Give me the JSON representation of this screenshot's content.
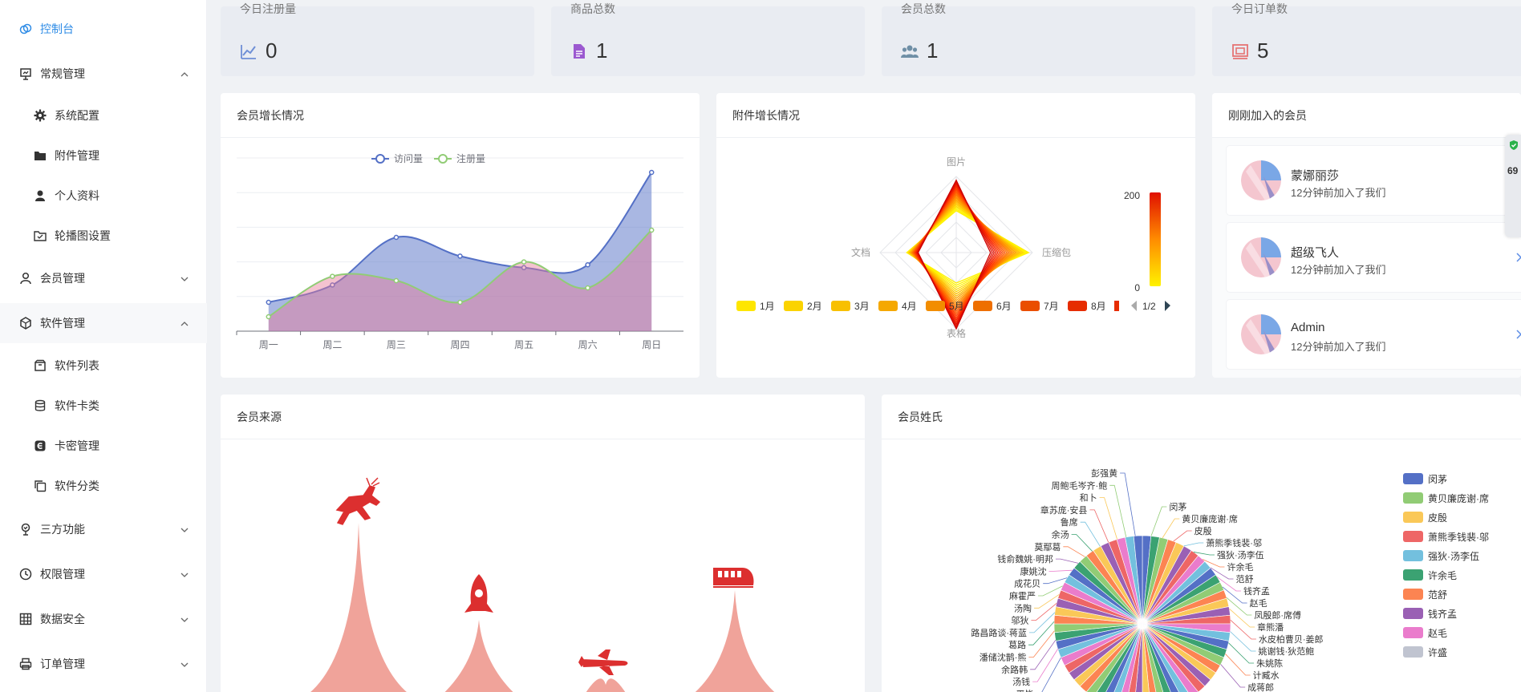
{
  "sidebar": {
    "items": [
      {
        "label": "控制台",
        "icon": "dashboard-icon",
        "y": 11
      },
      {
        "label": "常规管理",
        "icon": "presentation-icon",
        "y": 67,
        "chevron": "up"
      },
      {
        "label": "系统配置",
        "icon": "gear-icon",
        "y": 119,
        "sub": true
      },
      {
        "label": "附件管理",
        "icon": "folder-icon",
        "y": 169,
        "sub": true
      },
      {
        "label": "个人资料",
        "icon": "user-icon",
        "y": 219,
        "sub": true
      },
      {
        "label": "轮播图设置",
        "icon": "image-folder-icon",
        "y": 269,
        "sub": true
      },
      {
        "label": "会员管理",
        "icon": "person-outline-icon",
        "y": 322,
        "chevron": "down"
      },
      {
        "label": "软件管理",
        "icon": "cube-icon",
        "y": 378,
        "chevron": "up"
      },
      {
        "label": "软件列表",
        "icon": "box-icon",
        "y": 431,
        "sub": true
      },
      {
        "label": "软件卡类",
        "icon": "database-icon",
        "y": 481,
        "sub": true
      },
      {
        "label": "卡密管理",
        "icon": "card-icon",
        "y": 531,
        "sub": true
      },
      {
        "label": "软件分类",
        "icon": "copy-icon",
        "y": 581,
        "sub": true
      },
      {
        "label": "三方功能",
        "icon": "plant-icon",
        "y": 635,
        "chevron": "down"
      },
      {
        "label": "权限管理",
        "icon": "clock-icon",
        "y": 691,
        "chevron": "down"
      },
      {
        "label": "数据安全",
        "icon": "grid-icon",
        "y": 747,
        "chevron": "down"
      },
      {
        "label": "订单管理",
        "icon": "printer-icon",
        "y": 803,
        "chevron": "down"
      }
    ]
  },
  "stats": [
    {
      "label": "今日注册量",
      "value": "0",
      "icon": "chart-line-icon",
      "color": "#6f8fd6"
    },
    {
      "label": "商品总数",
      "value": "1",
      "icon": "document-icon",
      "color": "#9b59d0"
    },
    {
      "label": "会员总数",
      "value": "1",
      "icon": "users-icon",
      "color": "#6f8fa6"
    },
    {
      "label": "今日订单数",
      "value": "5",
      "icon": "order-icon",
      "color": "#e57373"
    }
  ],
  "growth": {
    "title": "会员增长情况",
    "chart_data": {
      "type": "area",
      "categories": [
        "周一",
        "周二",
        "周三",
        "周四",
        "周五",
        "周六",
        "周日"
      ],
      "series": [
        {
          "name": "访问量",
          "values": [
            200,
            320,
            650,
            520,
            440,
            460,
            1100
          ],
          "color": "#5470c6"
        },
        {
          "name": "注册量",
          "values": [
            100,
            380,
            350,
            200,
            480,
            300,
            700
          ],
          "color": "#91cc75"
        }
      ],
      "ylim": [
        0,
        1200
      ]
    }
  },
  "attach": {
    "title": "附件增长情况",
    "chart_data": {
      "type": "radar",
      "indicators": [
        "图片",
        "压缩包",
        "表格",
        "文档"
      ],
      "legend": [
        "1月",
        "2月",
        "3月",
        "4月",
        "5月",
        "6月",
        "7月",
        "8月"
      ],
      "legend_colors": [
        "#fee600",
        "#fbd300",
        "#f8c000",
        "#f5a800",
        "#f28d00",
        "#ee6f00",
        "#ea4e00",
        "#e62c00"
      ],
      "page": "1/2",
      "visual_map": {
        "max": "200",
        "min": "0"
      }
    }
  },
  "recent": {
    "title": "刚刚加入的会员",
    "members": [
      {
        "name": "蒙娜丽莎",
        "time": "12分钟前加入了我们"
      },
      {
        "name": "超级飞人",
        "time": "12分钟前加入了我们"
      },
      {
        "name": "Admin",
        "time": "12分钟前加入了我们"
      }
    ]
  },
  "source": {
    "title": "会员来源"
  },
  "surname": {
    "title": "会员姓氏",
    "chart_data": {
      "type": "pie",
      "legend": [
        "闵茅",
        "黄贝廉庞谢·席",
        "皮殷",
        "萧熊季钱裴·邬",
        "强狄·汤李伍",
        "许余毛",
        "范舒",
        "钱齐孟",
        "赵毛",
        "许盛"
      ],
      "legend_colors": [
        "#5470c6",
        "#91cc75",
        "#fac858",
        "#ee6666",
        "#73c0de",
        "#3ba272",
        "#fc8452",
        "#9a60b4",
        "#ea7ccc",
        "#c0c4d0"
      ],
      "labels": [
        "彭强黄",
        "周鲍毛岑齐·鲍",
        "和卜",
        "章苏庞·安县",
        "鲁席",
        "余汤",
        "莫鄢葛",
        "钱俞魏姚·明邦",
        "康姚沈",
        "成花贝",
        "麻霍严",
        "汤陶",
        "邬狄",
        "路昌路谈·蒋蓝",
        "葛路",
        "潘储沈鹊·熊",
        "余路韩",
        "汤钱",
        "平毕",
        "闵茅",
        "黄贝廉庞谢·席",
        "皮殷",
        "萧熊季钱裴·邬",
        "强狄·汤李伍",
        "许余毛",
        "范舒",
        "钱齐孟",
        "赵毛",
        "凤殷郎·席傅",
        "章熊潘",
        "水皮柏曹贝·姜郎",
        "姚谢钱·狄范鲍",
        "朱姚陈",
        "计臧水",
        "成蒋郎"
      ]
    }
  },
  "floating": {
    "pct": "69"
  }
}
